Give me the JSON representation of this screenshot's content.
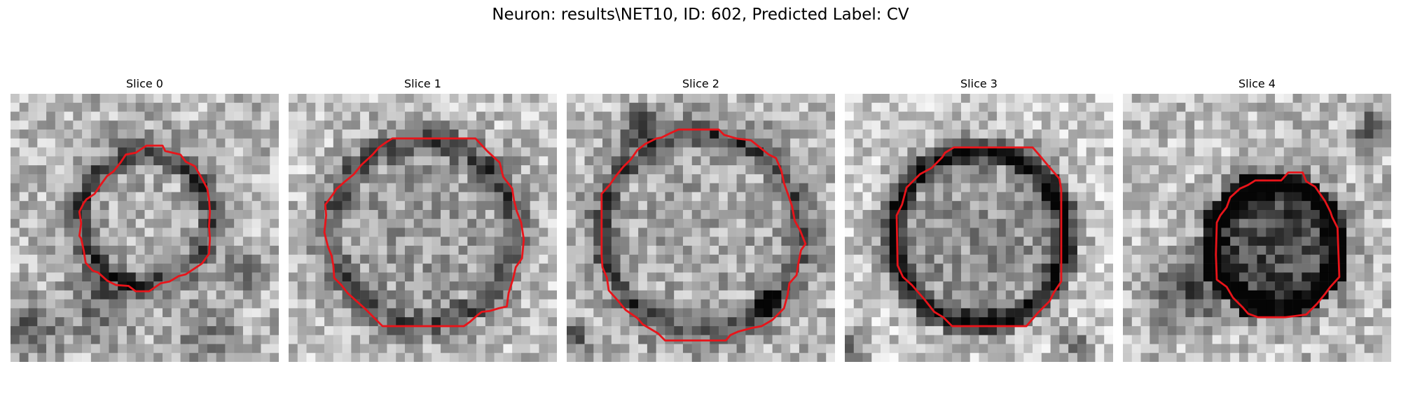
{
  "figure": {
    "title": "Neuron: results\\NET10, ID: 602, Predicted Label: CV"
  },
  "panels": [
    {
      "title": "Slice 0"
    },
    {
      "title": "Slice 1"
    },
    {
      "title": "Slice 2"
    },
    {
      "title": "Slice 3"
    },
    {
      "title": "Slice 4"
    }
  ],
  "colors": {
    "contour": "#e8141a",
    "background": "#ffffff"
  },
  "colormap": "gray"
}
